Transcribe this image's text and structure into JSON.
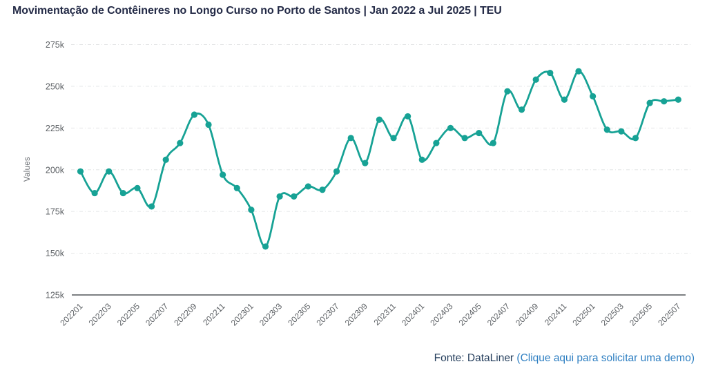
{
  "header": {
    "title": "Movimentação de Contêineres no Longo Curso no Porto de Santos | Jan 2022 a Jul 2025 | TEU"
  },
  "footer": {
    "source_label": "Fonte: DataLiner ",
    "link_label": "(Clique aqui para solicitar uma demo)"
  },
  "colors": {
    "line_teal": "#17a295",
    "title_navy": "#242b47",
    "source_navy": "#27405e",
    "link_blue": "#2e7fc2",
    "tick_gray": "#5d6165",
    "axis_gray": "#7c7f82",
    "grid_gray": "#e4e5e6",
    "background": "#ffffff"
  },
  "chart_data": {
    "type": "line",
    "title": "Movimentação de Contêineres no Longo Curso no Porto de Santos | Jan 2022 a Jul 2025 | TEU",
    "xlabel": "",
    "ylabel": "Values",
    "value_unit": "thousand TEU",
    "categories": [
      "202201",
      "202202",
      "202203",
      "202204",
      "202205",
      "202206",
      "202207",
      "202208",
      "202209",
      "202210",
      "202211",
      "202212",
      "202301",
      "202302",
      "202303",
      "202304",
      "202305",
      "202306",
      "202307",
      "202308",
      "202309",
      "202310",
      "202311",
      "202312",
      "202401",
      "202402",
      "202403",
      "202404",
      "202405",
      "202406",
      "202407",
      "202408",
      "202409",
      "202410",
      "202411",
      "202412",
      "202501",
      "202502",
      "202503",
      "202504",
      "202505",
      "202506",
      "202507"
    ],
    "values": [
      199,
      186,
      199,
      186,
      189,
      178,
      206,
      216,
      233,
      227,
      197,
      189,
      176,
      154,
      184,
      184,
      190,
      188,
      199,
      219,
      204,
      230,
      219,
      232,
      206,
      216,
      225,
      219,
      222,
      216,
      247,
      236,
      254,
      258,
      242,
      259,
      244,
      224,
      223,
      219,
      240,
      241,
      242
    ],
    "y_tick_values": [
      125,
      150,
      175,
      200,
      225,
      250,
      275
    ],
    "y_tick_labels": [
      "125k",
      "150k",
      "175k",
      "200k",
      "225k",
      "250k",
      "275k"
    ],
    "ylim": [
      125,
      275
    ],
    "x_label_every": 2,
    "grid": true,
    "legend": false,
    "smooth": true,
    "marker": "circle"
  }
}
